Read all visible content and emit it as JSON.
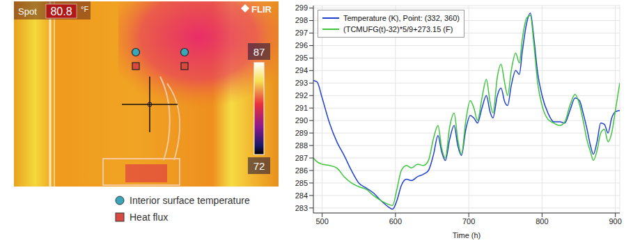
{
  "thermal_image": {
    "spot_label": "Spot",
    "spot_value": 80.8,
    "unit": "°F",
    "brand": "FLIR",
    "scale_max": 87,
    "scale_min": 72,
    "legend": [
      {
        "label": "Interior surface temperature",
        "marker": "circle",
        "color": "#3aa6b9"
      },
      {
        "label": "Heat flux",
        "marker": "square",
        "color": "#d8493f"
      }
    ]
  },
  "chart_data": {
    "type": "line",
    "x_label": "Time (h)",
    "legend": "upper left",
    "grid": true,
    "xlim": [
      488,
      906
    ],
    "xticks": [
      500,
      600,
      700,
      800,
      900
    ],
    "ylim": [
      282.6,
      299.2
    ],
    "yticks": [
      283,
      284,
      285,
      286,
      287,
      288,
      289,
      290,
      291,
      292,
      293,
      294,
      295,
      296,
      297,
      298,
      299
    ],
    "x": [
      488,
      493,
      500,
      510,
      520,
      530,
      540,
      550,
      560,
      570,
      580,
      590,
      596,
      602,
      608,
      615,
      622,
      630,
      638,
      645,
      652,
      658,
      663,
      668,
      674,
      680,
      685,
      690,
      696,
      702,
      707,
      712,
      718,
      724,
      729,
      733,
      739,
      744,
      749,
      753,
      758,
      764,
      769,
      773,
      779,
      784,
      789,
      794,
      800,
      808,
      816,
      824,
      831,
      838,
      845,
      851,
      856,
      861,
      866,
      870,
      875,
      880,
      885,
      890,
      895,
      900,
      906
    ],
    "series": [
      {
        "name": "Temperature (K), Point: (332, 360)",
        "color": "#1f3fd1",
        "values": [
          293.2,
          293.1,
          291.8,
          289.8,
          288.3,
          287.2,
          286.0,
          285.0,
          284.6,
          284.2,
          283.6,
          283.1,
          282.9,
          283.6,
          284.8,
          285.3,
          285.2,
          285.5,
          285.7,
          286.0,
          287.3,
          288.8,
          287.5,
          286.8,
          288.5,
          289.6,
          288.0,
          287.2,
          289.3,
          290.4,
          290.2,
          289.8,
          291.0,
          292.0,
          290.7,
          290.2,
          292.0,
          292.6,
          291.5,
          291.2,
          292.8,
          294.0,
          293.7,
          295.5,
          297.8,
          298.6,
          296.5,
          293.8,
          292.0,
          290.6,
          289.9,
          289.9,
          289.8,
          290.8,
          291.8,
          291.6,
          290.6,
          289.4,
          288.0,
          287.3,
          288.3,
          289.8,
          289.7,
          289.0,
          290.2,
          290.7,
          290.8
        ]
      },
      {
        "name": "(TCMUFG(t)-32)*5/9+273.15 (F)",
        "color": "#3cc43c",
        "values": [
          287.0,
          286.7,
          286.5,
          286.4,
          286.2,
          285.5,
          285.0,
          284.7,
          284.5,
          284.0,
          283.6,
          283.3,
          283.2,
          284.5,
          286.0,
          286.4,
          286.2,
          286.5,
          286.4,
          286.8,
          288.6,
          289.6,
          287.8,
          287.0,
          289.5,
          290.6,
          288.5,
          287.3,
          290.0,
          291.6,
          291.0,
          290.0,
          291.8,
          293.3,
          291.5,
          290.6,
          293.5,
          294.5,
          293.0,
          292.0,
          294.0,
          295.4,
          294.6,
          296.5,
          298.2,
          298.4,
          296.0,
          293.0,
          291.2,
          290.1,
          289.8,
          289.6,
          289.9,
          291.2,
          292.1,
          291.3,
          290.0,
          288.5,
          287.5,
          286.8,
          287.6,
          289.0,
          289.3,
          288.3,
          289.0,
          290.8,
          293.0
        ]
      }
    ]
  }
}
